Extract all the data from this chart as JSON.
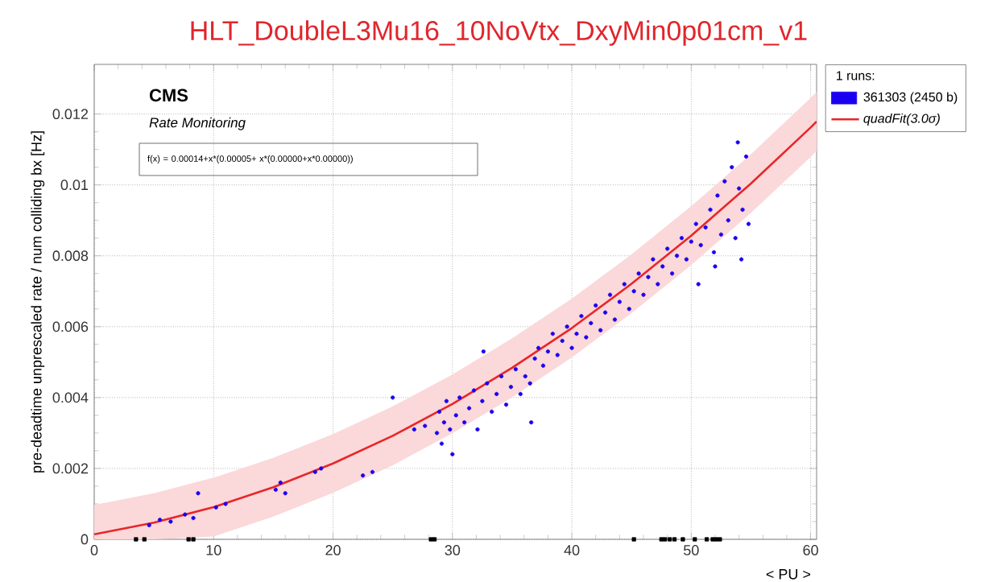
{
  "chart_data": {
    "type": "scatter",
    "title": "HLT_DoubleL3Mu16_10NoVtx_DxyMin0p01cm_v1",
    "xlabel": "< PU >",
    "ylabel": "pre-deadtime unprescaled rate / num colliding bx [Hz]",
    "annotations": [
      "CMS",
      "Rate Monitoring",
      "f(x) = 0.00014+x*(0.00005+ x*(0.00000+x*0.00000))"
    ],
    "legend_title": "1 runs:",
    "xlim": [
      0,
      60.5
    ],
    "ylim": [
      0,
      0.0134
    ],
    "xticks": [
      0,
      10,
      20,
      30,
      40,
      50,
      60
    ],
    "yticks": [
      0,
      0.002,
      0.004,
      0.006,
      0.008,
      0.01,
      0.012
    ],
    "grid": true,
    "legend": "top right",
    "series": [
      {
        "name": "361303 (2450 b)",
        "color": "#1a00f0",
        "marker": "circle",
        "x": [
          4.6,
          5.5,
          6.4,
          7.6,
          8.3,
          8.7,
          10.2,
          11,
          15.2,
          15.6,
          16,
          18.5,
          19,
          22.5,
          23.3,
          25,
          26.8,
          27.7,
          28.7,
          28.9,
          29.1,
          29.3,
          29.5,
          29.8,
          30.0,
          30.3,
          30.6,
          31.0,
          31.4,
          31.8,
          32.1,
          32.5,
          32.9,
          33.3,
          33.7,
          34.1,
          34.5,
          34.9,
          35.3,
          35.7,
          36.1,
          36.5,
          36.9,
          37.2,
          37.6,
          38.0,
          38.4,
          38.8,
          39.2,
          39.6,
          40.0,
          40.4,
          40.8,
          41.2,
          41.6,
          42.0,
          42.4,
          42.8,
          43.2,
          43.6,
          44.0,
          44.4,
          44.8,
          45.2,
          45.6,
          46.0,
          46.4,
          46.8,
          47.2,
          47.6,
          48.0,
          48.4,
          48.8,
          49.2,
          49.6,
          50.0,
          50.4,
          50.8,
          51.2,
          51.6,
          51.9,
          52.2,
          52.5,
          52.8,
          53.1,
          53.4,
          53.7,
          54.0,
          54.3,
          54.6,
          54.8,
          53.9,
          54.2,
          52.0,
          50.6,
          36.6,
          32.6
        ],
        "values": [
          0.0004,
          0.00055,
          0.0005,
          0.0007,
          0.0006,
          0.0013,
          0.0009,
          0.001,
          0.0014,
          0.0016,
          0.0013,
          0.0019,
          0.002,
          0.0018,
          0.0019,
          0.004,
          0.0031,
          0.0032,
          0.003,
          0.0036,
          0.0027,
          0.0033,
          0.0039,
          0.0031,
          0.0024,
          0.0035,
          0.004,
          0.0033,
          0.0037,
          0.0042,
          0.0031,
          0.0039,
          0.0044,
          0.0036,
          0.0041,
          0.0046,
          0.0038,
          0.0043,
          0.0048,
          0.0041,
          0.0046,
          0.0044,
          0.0051,
          0.0054,
          0.0049,
          0.0053,
          0.0058,
          0.0052,
          0.0056,
          0.006,
          0.0054,
          0.0058,
          0.0063,
          0.0057,
          0.0061,
          0.0066,
          0.0059,
          0.0064,
          0.0069,
          0.0062,
          0.0067,
          0.0072,
          0.0065,
          0.007,
          0.0075,
          0.0069,
          0.0074,
          0.0079,
          0.0072,
          0.0077,
          0.0082,
          0.0075,
          0.008,
          0.0085,
          0.0079,
          0.0084,
          0.0089,
          0.0083,
          0.0088,
          0.0093,
          0.0081,
          0.0097,
          0.0086,
          0.0101,
          0.009,
          0.0105,
          0.0085,
          0.0099,
          0.0093,
          0.0108,
          0.0089,
          0.0112,
          0.0079,
          0.0077,
          0.0072,
          0.0033,
          0.0053
        ]
      },
      {
        "name": "quadFit(3.0σ)",
        "color": "#e8262a",
        "type": "line",
        "x": [
          0,
          5,
          10,
          15,
          20,
          25,
          30,
          35,
          40,
          45,
          50,
          55,
          60,
          60.5
        ],
        "values": [
          0.00014,
          0.00047,
          0.00091,
          0.00147,
          0.00214,
          0.00292,
          0.00382,
          0.00484,
          0.00596,
          0.00721,
          0.00857,
          0.01004,
          0.01162,
          0.01179
        ],
        "lower": [
          0,
          0,
          8e-05,
          0.00064,
          0.00131,
          0.00209,
          0.00299,
          0.00401,
          0.00513,
          0.00638,
          0.00774,
          0.00921,
          0.01079,
          0.01096
        ],
        "upper": [
          0.00097,
          0.0013,
          0.00174,
          0.0023,
          0.00297,
          0.00375,
          0.00465,
          0.00567,
          0.00679,
          0.00804,
          0.0094,
          0.01087,
          0.01245,
          0.01262
        ]
      },
      {
        "color": "#000000",
        "marker": "square",
        "x": [
          3.5,
          4.2,
          7.9,
          8.3,
          28.2,
          28.5,
          45.2,
          47.5,
          47.8,
          48.2,
          48.6,
          49.3,
          50.3,
          51.3,
          51.8,
          52.1,
          52.4
        ],
        "values": [
          0,
          0,
          0,
          0,
          0,
          0,
          0,
          0,
          0,
          0,
          0,
          0,
          0,
          0,
          0,
          0,
          0
        ]
      }
    ]
  }
}
